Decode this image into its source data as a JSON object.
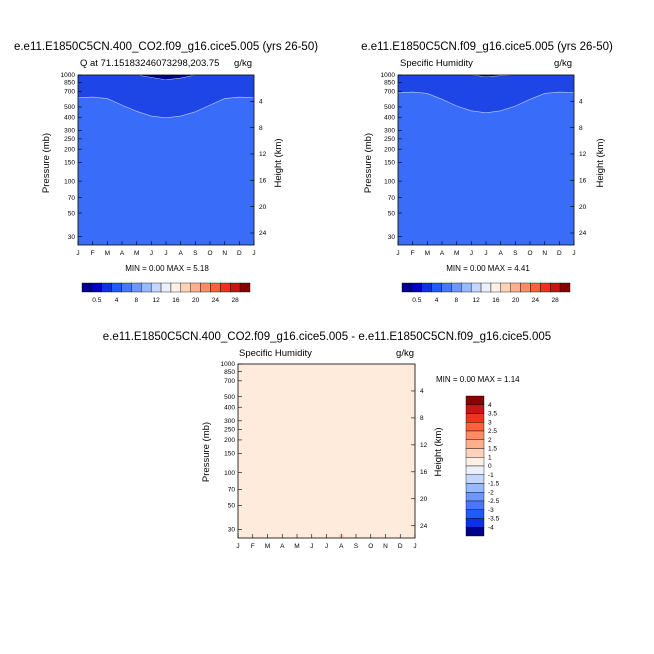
{
  "figure": {
    "panels": [
      {
        "id": "p1",
        "title": "e.e11.E1850C5CN.400_CO2.f09_g16.cice5.005 (yrs 26-50)",
        "left_label": "Q at 71.15183246073298,203.75",
        "right_label": "g/kg",
        "minmax": "MIN =  0.00 MAX =  5.18"
      },
      {
        "id": "p2",
        "title": "e.e11.E1850C5CN.f09_g16.cice5.005 (yrs 26-50)",
        "left_label": "Specific Humidity",
        "right_label": "g/kg",
        "minmax": "MIN =  0.00 MAX =  4.41"
      },
      {
        "id": "p3",
        "title": "e.e11.E1850C5CN.400_CO2.f09_g16.cice5.005 - e.e11.E1850C5CN.f09_g16.cice5.005",
        "left_label": "Specific Humidity",
        "right_label": "g/kg",
        "minmax": "MIN =  0.00 MAX =  1.14"
      }
    ],
    "left_axis_label": "Pressure (mb)",
    "right_axis_label": "Height (km)"
  },
  "chart_data": [
    {
      "type": "heatmap",
      "title": "e.e11.E1850C5CN.400_CO2.f09_g16.cice5.005 (yrs 26-50)",
      "subtitle": "Q at 71.15183246073298,203.75",
      "units": "g/kg",
      "xlabel": "",
      "ylabel": "Pressure (mb)",
      "y2label": "Height (km)",
      "x_ticks": [
        "J",
        "F",
        "M",
        "A",
        "M",
        "J",
        "J",
        "A",
        "S",
        "O",
        "N",
        "D",
        "J"
      ],
      "y_ticks": [
        30,
        50,
        70,
        100,
        150,
        200,
        250,
        300,
        400,
        500,
        700,
        850,
        1000
      ],
      "y_log": true,
      "y_reversed": true,
      "y2_ticks": [
        4,
        8,
        12,
        16,
        20,
        24
      ],
      "ylim": [
        1000,
        25
      ],
      "contours_top_pressure": {
        "0.5": [
          610,
          620,
          600,
          520,
          455,
          410,
          395,
          410,
          450,
          520,
          600,
          620,
          610
        ],
        "4": [
          1000,
          1000,
          990,
          900,
          790,
          700,
          680,
          710,
          790,
          900,
          990,
          1000,
          1000
        ],
        "8": [
          1000,
          1000,
          1000,
          1000,
          1000,
          950,
          900,
          935,
          1000,
          1000,
          1000,
          1000,
          1000
        ]
      },
      "min": 0.0,
      "max": 5.18,
      "colorbar": {
        "labels": [
          "0.5",
          "4",
          "8",
          "12",
          "16",
          "20",
          "24",
          "28"
        ],
        "colors": [
          "#00008B",
          "#0000C8",
          "#0A32E6",
          "#1E5AFF",
          "#4678FF",
          "#6E96FF",
          "#96B9FF",
          "#C3D7FF",
          "#EBF0FF",
          "#FFF0E6",
          "#FFD2B9",
          "#FFAF8C",
          "#FF8C64",
          "#FF5F3C",
          "#F0321E",
          "#C81414",
          "#8C0000"
        ]
      }
    },
    {
      "type": "heatmap",
      "title": "e.e11.E1850C5CN.f09_g16.cice5.005 (yrs 26-50)",
      "subtitle": "Specific Humidity",
      "units": "g/kg",
      "xlabel": "",
      "ylabel": "Pressure (mb)",
      "y2label": "Height (km)",
      "x_ticks": [
        "J",
        "F",
        "M",
        "A",
        "M",
        "J",
        "J",
        "A",
        "S",
        "O",
        "N",
        "D",
        "J"
      ],
      "y_ticks": [
        30,
        50,
        70,
        100,
        150,
        200,
        250,
        300,
        400,
        500,
        700,
        850,
        1000
      ],
      "y_log": true,
      "y_reversed": true,
      "y2_ticks": [
        4,
        8,
        12,
        16,
        20,
        24
      ],
      "ylim": [
        1000,
        25
      ],
      "contours_top_pressure": {
        "0.5": [
          680,
          690,
          670,
          590,
          510,
          460,
          440,
          460,
          510,
          590,
          670,
          690,
          680
        ],
        "4": [
          1000,
          1000,
          1000,
          980,
          880,
          780,
          760,
          790,
          880,
          980,
          1000,
          1000,
          1000
        ],
        "8": [
          1000,
          1000,
          1000,
          1000,
          1000,
          1000,
          960,
          985,
          1000,
          1000,
          1000,
          1000,
          1000
        ]
      },
      "min": 0.0,
      "max": 4.41,
      "colorbar": {
        "labels": [
          "0.5",
          "4",
          "8",
          "12",
          "16",
          "20",
          "24",
          "28"
        ],
        "colors": [
          "#00008B",
          "#0000C8",
          "#0A32E6",
          "#1E5AFF",
          "#4678FF",
          "#6E96FF",
          "#96B9FF",
          "#C3D7FF",
          "#EBF0FF",
          "#FFF0E6",
          "#FFD2B9",
          "#FFAF8C",
          "#FF8C64",
          "#FF5F3C",
          "#F0321E",
          "#C81414",
          "#8C0000"
        ]
      }
    },
    {
      "type": "heatmap",
      "title": "e.e11.E1850C5CN.400_CO2.f09_g16.cice5.005 - e.e11.E1850C5CN.f09_g16.cice5.005",
      "subtitle": "Specific Humidity",
      "units": "g/kg",
      "xlabel": "",
      "ylabel": "Pressure (mb)",
      "y2label": "Height (km)",
      "x_ticks": [
        "J",
        "F",
        "M",
        "A",
        "M",
        "J",
        "J",
        "A",
        "S",
        "O",
        "N",
        "D",
        "J"
      ],
      "y_ticks": [
        30,
        50,
        70,
        100,
        150,
        200,
        250,
        300,
        400,
        500,
        700,
        850,
        1000
      ],
      "y_log": true,
      "y_reversed": true,
      "y2_ticks": [
        4,
        8,
        12,
        16,
        20,
        24
      ],
      "ylim": [
        1000,
        25
      ],
      "field_fill": "#FFEBDC",
      "min": 0.0,
      "max": 1.14,
      "colorbar": {
        "orientation": "vertical",
        "labels": [
          "4",
          "3.5",
          "3",
          "2.5",
          "2",
          "1.5",
          "1",
          "0",
          "-1",
          "-1.5",
          "-2",
          "-2.5",
          "-3",
          "-3.5",
          "-4"
        ],
        "colors": [
          "#8C0000",
          "#C81414",
          "#F0321E",
          "#FF5F3C",
          "#FF8C64",
          "#FFAF8C",
          "#FFD2B9",
          "#FFF0E6",
          "#EBF0FF",
          "#C3D7FF",
          "#96B9FF",
          "#6E96FF",
          "#4678FF",
          "#1E5AFF",
          "#0A32E6",
          "#00008B"
        ]
      }
    }
  ]
}
